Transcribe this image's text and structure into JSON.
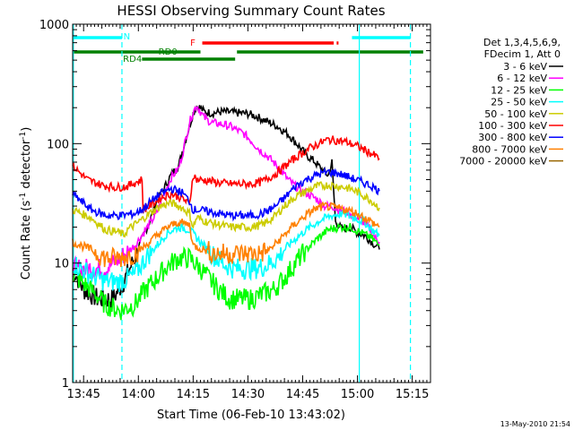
{
  "chart_data": {
    "type": "line",
    "title": "HESSI Observing Summary Count Rates",
    "xlabel": "Start Time (06-Feb-10 13:43:02)",
    "ylabel_pre": "Count Rate (s",
    "ylabel_sup": "-1",
    "ylabel_post": " detector",
    "ylabel_sup2": "-1",
    "ylabel_end": ")",
    "yscale": "log",
    "ylim": [
      1,
      1000
    ],
    "xlim_minutes": [
      -3,
      95
    ],
    "x_ticks": [
      {
        "m": 0,
        "label": "13:45"
      },
      {
        "m": 15,
        "label": "14:00"
      },
      {
        "m": 30,
        "label": "14:15"
      },
      {
        "m": 45,
        "label": "14:30"
      },
      {
        "m": 60,
        "label": "14:45"
      },
      {
        "m": 75,
        "label": "15:00"
      },
      {
        "m": 90,
        "label": "15:15"
      }
    ],
    "y_ticks": [
      {
        "v": 1,
        "label": "1"
      },
      {
        "v": 10,
        "label": "10"
      },
      {
        "v": 100,
        "label": "100"
      },
      {
        "v": 1000,
        "label": "1000"
      }
    ],
    "legend_header": [
      "Det 1,3,4,5,6,9,",
      "FDecim 1, Att 0"
    ],
    "series": [
      {
        "name": "3 - 6 keV",
        "color": "#000000",
        "points": [
          [
            -3,
            9
          ],
          [
            0,
            6
          ],
          [
            4,
            5
          ],
          [
            8,
            5
          ],
          [
            11,
            7
          ],
          [
            14,
            11
          ],
          [
            16,
            16
          ],
          [
            18,
            22
          ],
          [
            20,
            33
          ],
          [
            22,
            42
          ],
          [
            24,
            55
          ],
          [
            26,
            65
          ],
          [
            27,
            85
          ],
          [
            28,
            110
          ],
          [
            29,
            140
          ],
          [
            30,
            180
          ],
          [
            31,
            205
          ],
          [
            32,
            200
          ],
          [
            33,
            185
          ],
          [
            35,
            180
          ],
          [
            38,
            185
          ],
          [
            41,
            182
          ],
          [
            43,
            180
          ],
          [
            45,
            178
          ],
          [
            47,
            170
          ],
          [
            50,
            155
          ],
          [
            53,
            140
          ],
          [
            56,
            120
          ],
          [
            59,
            95
          ],
          [
            61,
            80
          ],
          [
            63,
            72
          ],
          [
            65,
            62
          ],
          [
            67,
            54
          ],
          [
            68,
            70
          ],
          [
            69,
            22
          ],
          [
            71,
            19
          ],
          [
            73,
            20
          ],
          [
            75,
            18
          ],
          [
            77,
            17
          ],
          [
            79,
            15
          ],
          [
            81,
            13
          ]
        ]
      },
      {
        "name": "6 - 12 keV",
        "color": "#ff00ff",
        "points": [
          [
            -3,
            9
          ],
          [
            2,
            9
          ],
          [
            6,
            9
          ],
          [
            10,
            11
          ],
          [
            14,
            14
          ],
          [
            17,
            19
          ],
          [
            20,
            26
          ],
          [
            22,
            38
          ],
          [
            24,
            52
          ],
          [
            26,
            62
          ],
          [
            27,
            80
          ],
          [
            28,
            110
          ],
          [
            29,
            150
          ],
          [
            30,
            185
          ],
          [
            31,
            210
          ],
          [
            32,
            185
          ],
          [
            33,
            165
          ],
          [
            35,
            150
          ],
          [
            38,
            145
          ],
          [
            40,
            140
          ],
          [
            42,
            130
          ],
          [
            44,
            120
          ],
          [
            46,
            105
          ],
          [
            48,
            90
          ],
          [
            50,
            80
          ],
          [
            52,
            70
          ],
          [
            54,
            60
          ],
          [
            56,
            50
          ],
          [
            58,
            44
          ],
          [
            60,
            40
          ],
          [
            62,
            37
          ],
          [
            64,
            34
          ],
          [
            66,
            30
          ],
          [
            68,
            30
          ],
          [
            70,
            28
          ],
          [
            72,
            27
          ],
          [
            74,
            25
          ],
          [
            76,
            23
          ],
          [
            78,
            20
          ],
          [
            80,
            16
          ],
          [
            81,
            15
          ]
        ]
      },
      {
        "name": "12 - 25 keV",
        "color": "#00ff00",
        "points": [
          [
            -3,
            8
          ],
          [
            2,
            6
          ],
          [
            6,
            4.5
          ],
          [
            10,
            4
          ],
          [
            14,
            4.5
          ],
          [
            17,
            6
          ],
          [
            20,
            7.5
          ],
          [
            23,
            9.5
          ],
          [
            26,
            11
          ],
          [
            29,
            11
          ],
          [
            32,
            9
          ],
          [
            35,
            7
          ],
          [
            37,
            6
          ],
          [
            40,
            5
          ],
          [
            43,
            5
          ],
          [
            46,
            5
          ],
          [
            49,
            5.5
          ],
          [
            52,
            6
          ],
          [
            55,
            7.5
          ],
          [
            58,
            10
          ],
          [
            61,
            13
          ],
          [
            64,
            16
          ],
          [
            67,
            19
          ],
          [
            70,
            20
          ],
          [
            73,
            20
          ],
          [
            76,
            18
          ],
          [
            79,
            16
          ],
          [
            81,
            14
          ]
        ]
      },
      {
        "name": "25 - 50 keV",
        "color": "#00ffff",
        "points": [
          [
            -3,
            10
          ],
          [
            2,
            8
          ],
          [
            6,
            7
          ],
          [
            10,
            7
          ],
          [
            14,
            8
          ],
          [
            17,
            11
          ],
          [
            20,
            14
          ],
          [
            23,
            18
          ],
          [
            26,
            20
          ],
          [
            29,
            19
          ],
          [
            32,
            15
          ],
          [
            35,
            12
          ],
          [
            38,
            10
          ],
          [
            41,
            9
          ],
          [
            44,
            9
          ],
          [
            47,
            9
          ],
          [
            50,
            9.5
          ],
          [
            53,
            11
          ],
          [
            56,
            14
          ],
          [
            59,
            17
          ],
          [
            62,
            20
          ],
          [
            65,
            23
          ],
          [
            68,
            25
          ],
          [
            71,
            26
          ],
          [
            74,
            24
          ],
          [
            77,
            22
          ],
          [
            79,
            19
          ],
          [
            81,
            17
          ]
        ]
      },
      {
        "name": "50 - 100 keV",
        "color": "#cccc00",
        "points": [
          [
            -3,
            28
          ],
          [
            2,
            24
          ],
          [
            6,
            19
          ],
          [
            10,
            18
          ],
          [
            11,
            17
          ],
          [
            12,
            19
          ],
          [
            15,
            22
          ],
          [
            18,
            26
          ],
          [
            21,
            30
          ],
          [
            24,
            32
          ],
          [
            27,
            29
          ],
          [
            29,
            26
          ],
          [
            30,
            20
          ],
          [
            31,
            24
          ],
          [
            34,
            22
          ],
          [
            37,
            21
          ],
          [
            40,
            20
          ],
          [
            43,
            20
          ],
          [
            46,
            20
          ],
          [
            49,
            21
          ],
          [
            52,
            24
          ],
          [
            55,
            30
          ],
          [
            58,
            36
          ],
          [
            61,
            40
          ],
          [
            64,
            44
          ],
          [
            67,
            45
          ],
          [
            70,
            44
          ],
          [
            73,
            42
          ],
          [
            76,
            38
          ],
          [
            79,
            33
          ],
          [
            81,
            29
          ]
        ]
      },
      {
        "name": "100 - 300 keV",
        "color": "#ff0000",
        "points": [
          [
            -3,
            65
          ],
          [
            1,
            50
          ],
          [
            5,
            45
          ],
          [
            9,
            43
          ],
          [
            12,
            44
          ],
          [
            14,
            47
          ],
          [
            16,
            50
          ],
          [
            16.3,
            28
          ],
          [
            18,
            30
          ],
          [
            21,
            35
          ],
          [
            24,
            38
          ],
          [
            27,
            35
          ],
          [
            29,
            31
          ],
          [
            30,
            55
          ],
          [
            31,
            50
          ],
          [
            34,
            49
          ],
          [
            37,
            47
          ],
          [
            40,
            46
          ],
          [
            43,
            46
          ],
          [
            46,
            46
          ],
          [
            48,
            47
          ],
          [
            50,
            50
          ],
          [
            53,
            57
          ],
          [
            56,
            68
          ],
          [
            59,
            80
          ],
          [
            62,
            92
          ],
          [
            65,
            102
          ],
          [
            67,
            108
          ],
          [
            69,
            107
          ],
          [
            72,
            103
          ],
          [
            75,
            95
          ],
          [
            78,
            85
          ],
          [
            81,
            75
          ]
        ]
      },
      {
        "name": "300 - 800 keV",
        "color": "#0000ff",
        "points": [
          [
            -3,
            38
          ],
          [
            2,
            28
          ],
          [
            6,
            25
          ],
          [
            10,
            25
          ],
          [
            14,
            26
          ],
          [
            16,
            28
          ],
          [
            18,
            32
          ],
          [
            21,
            38
          ],
          [
            24,
            42
          ],
          [
            27,
            39
          ],
          [
            29,
            33
          ],
          [
            30,
            28
          ],
          [
            31,
            28
          ],
          [
            34,
            27
          ],
          [
            37,
            26
          ],
          [
            40,
            25
          ],
          [
            43,
            25
          ],
          [
            46,
            25
          ],
          [
            49,
            26
          ],
          [
            52,
            29
          ],
          [
            55,
            35
          ],
          [
            58,
            44
          ],
          [
            61,
            50
          ],
          [
            64,
            55
          ],
          [
            67,
            58
          ],
          [
            70,
            56
          ],
          [
            73,
            52
          ],
          [
            76,
            48
          ],
          [
            79,
            44
          ],
          [
            81,
            40
          ]
        ]
      },
      {
        "name": "800 - 7000 keV",
        "color": "#ff8000",
        "points": [
          [
            -3,
            15
          ],
          [
            2,
            13
          ],
          [
            6,
            11
          ],
          [
            10,
            11
          ],
          [
            14,
            12
          ],
          [
            17,
            14
          ],
          [
            20,
            17
          ],
          [
            23,
            20
          ],
          [
            26,
            22
          ],
          [
            29,
            21
          ],
          [
            30,
            14
          ],
          [
            33,
            13
          ],
          [
            36,
            12
          ],
          [
            39,
            12
          ],
          [
            42,
            12
          ],
          [
            45,
            12
          ],
          [
            48,
            12
          ],
          [
            51,
            13
          ],
          [
            54,
            16
          ],
          [
            57,
            20
          ],
          [
            60,
            24
          ],
          [
            63,
            28
          ],
          [
            66,
            30
          ],
          [
            69,
            29
          ],
          [
            72,
            28
          ],
          [
            75,
            26
          ],
          [
            78,
            23
          ],
          [
            81,
            20
          ]
        ]
      },
      {
        "name": "7000 - 20000 keV",
        "color": "#996600",
        "points": []
      }
    ],
    "bars": [
      {
        "label": "N",
        "color": "#00ffff",
        "segments": [
          [
            -2.8,
            10.5
          ],
          [
            73.5,
            89.5
          ]
        ]
      },
      {
        "label": "F",
        "color": "#ff0000",
        "segments": [
          [
            32.5,
            68.5
          ],
          [
            69.3,
            69.8
          ]
        ]
      },
      {
        "label": "RD0",
        "color": "#008000",
        "segments": [
          [
            -2.8,
            32
          ],
          [
            42,
            93
          ]
        ]
      },
      {
        "label": "RD4",
        "color": "#008000",
        "segments": [
          [
            16,
            41.5
          ]
        ]
      }
    ],
    "vlines_solid": [
      -2.8,
      75.5
    ],
    "vlines_dashed": [
      10.5,
      89.5
    ],
    "vline_color": "#00ffff",
    "footer": "13-May-2010 21:54"
  }
}
